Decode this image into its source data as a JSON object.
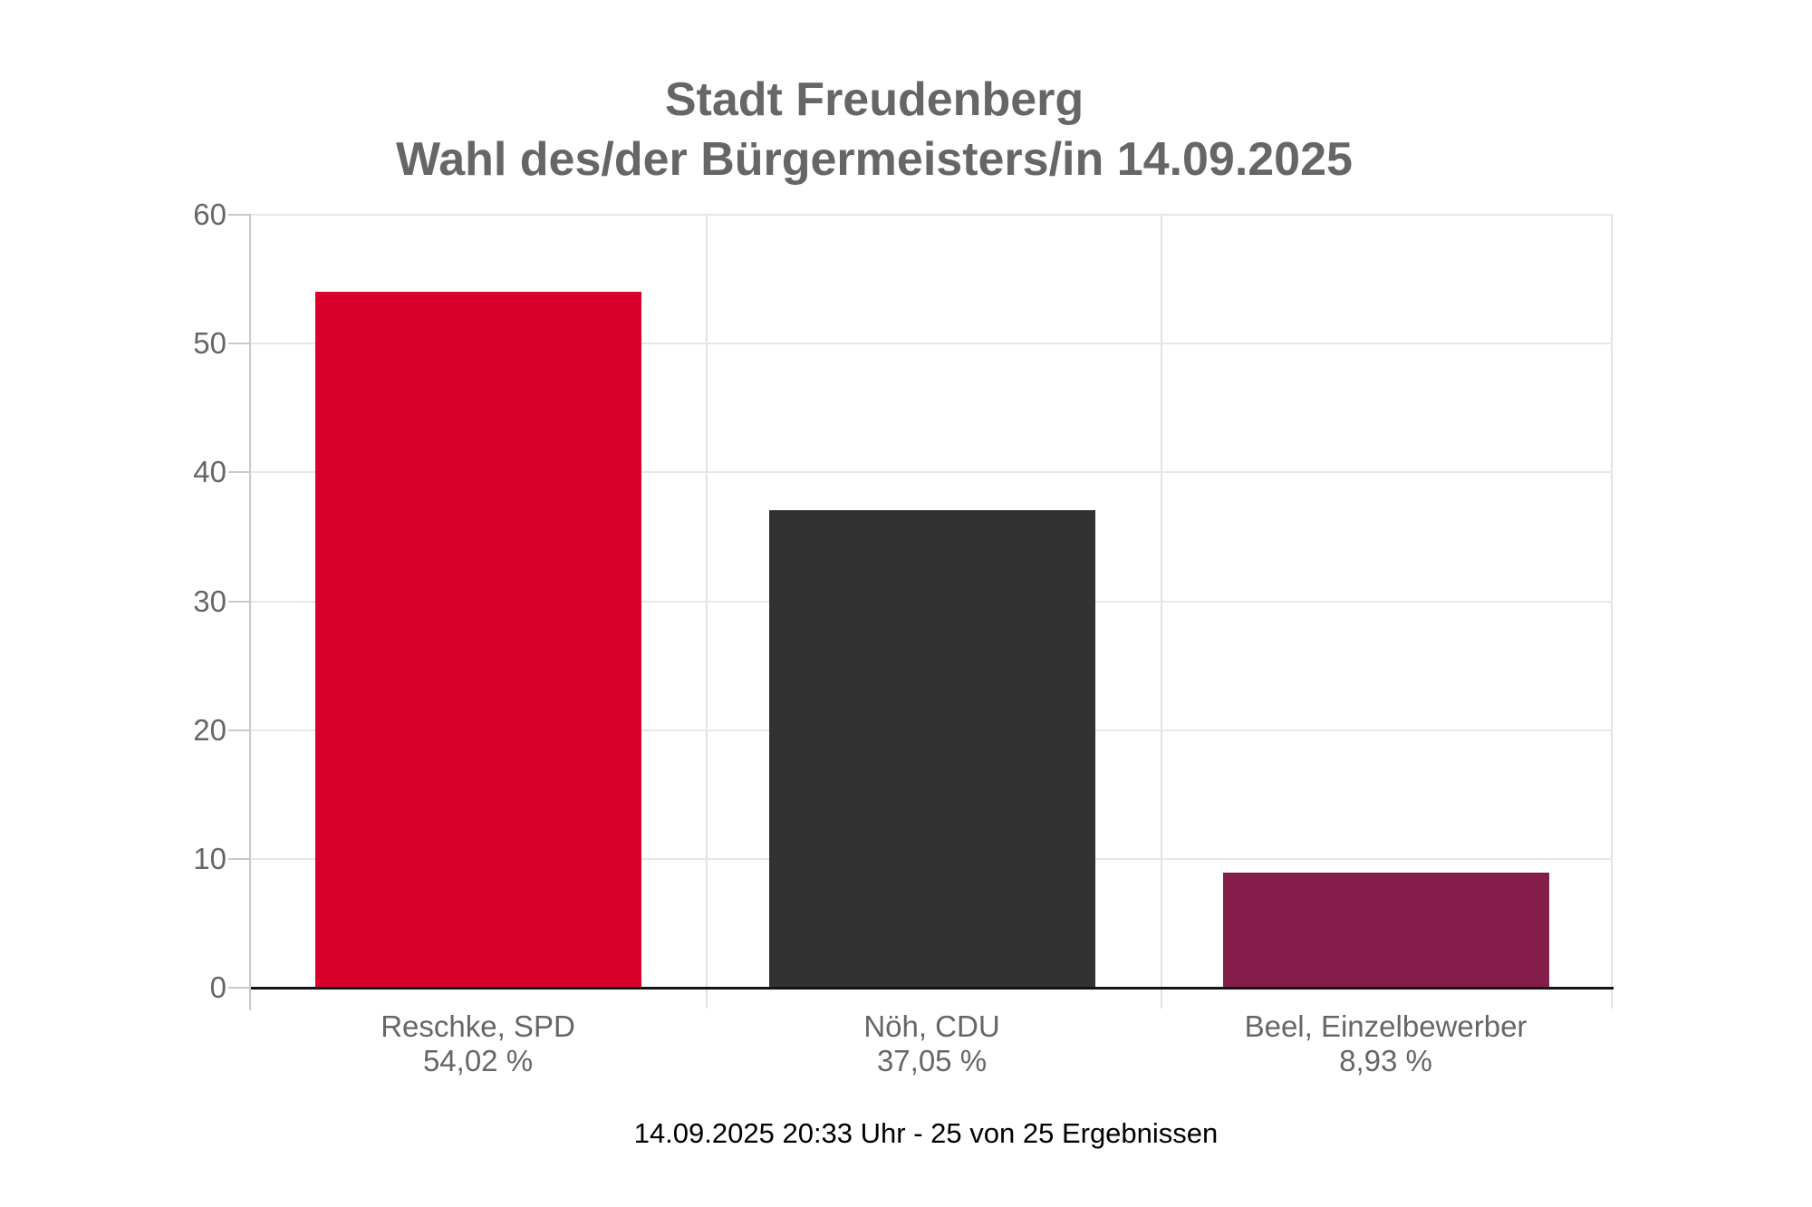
{
  "chart_data": {
    "type": "bar",
    "title": "Stadt Freudenberg",
    "subtitle": "Wahl des/der Bürgermeisters/in 14.09.2025",
    "categories": [
      "Reschke, SPD",
      "Nöh, CDU",
      "Beel, Einzelbewerber"
    ],
    "values": [
      54.02,
      37.05,
      8.93
    ],
    "value_labels": [
      "54,02 %",
      "37,05 %",
      "8,93 %"
    ],
    "colors": [
      "#d8002a",
      "#323232",
      "#851d4b"
    ],
    "ylim": [
      0,
      60
    ],
    "yticks": [
      0,
      10,
      20,
      30,
      40,
      50,
      60
    ],
    "xlabel": "",
    "ylabel": "",
    "grid": true,
    "legend": "none",
    "footer": "14.09.2025 20:33 Uhr - 25 von 25 Ergebnissen"
  }
}
